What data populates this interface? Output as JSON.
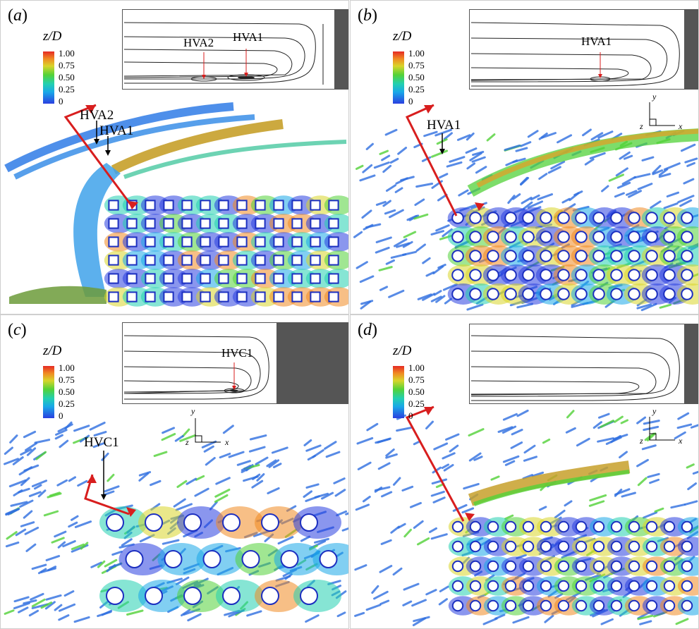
{
  "panels": [
    {
      "id": "a",
      "label": "a",
      "legend": {
        "title": "z/D",
        "ticks": [
          "1.00",
          "0.75",
          "0.50",
          "0.25",
          "0"
        ]
      },
      "inset_annotations": [
        "HVA2",
        "HVA1"
      ],
      "scene_annotations": [
        "HVA2",
        "HVA1"
      ]
    },
    {
      "id": "b",
      "label": "b",
      "legend": {
        "title": "z/D",
        "ticks": [
          "1.00",
          "0.75",
          "0.50",
          "0.25",
          "0"
        ]
      },
      "inset_annotations": [
        "HVA1"
      ],
      "scene_annotations": [
        "HVA1"
      ],
      "axes": {
        "y": "y",
        "z": "z",
        "x": "x"
      }
    },
    {
      "id": "c",
      "label": "c",
      "legend": {
        "title": "z/D",
        "ticks": [
          "1.00",
          "0.75",
          "0.50",
          "0.25",
          "0"
        ]
      },
      "inset_annotations": [
        "HVC1"
      ],
      "scene_annotations": [
        "HVC1"
      ],
      "axes": {
        "y": "y",
        "z": "z",
        "x": "x"
      }
    },
    {
      "id": "d",
      "label": "d",
      "legend": {
        "title": "z/D",
        "ticks": [
          "1.00",
          "0.75",
          "0.50",
          "0.25",
          "0"
        ]
      },
      "inset_annotations": [],
      "scene_annotations": [],
      "axes": {
        "y": "y",
        "z": "z",
        "x": "x"
      }
    }
  ],
  "colors": {
    "blue": "#2a3fe0",
    "cyan": "#19a7e8",
    "green": "#52d238",
    "yellow": "#d8d52a",
    "orange": "#f08a22",
    "red": "#e52a24",
    "arrow": "#d81e1e",
    "block": "#555555"
  }
}
